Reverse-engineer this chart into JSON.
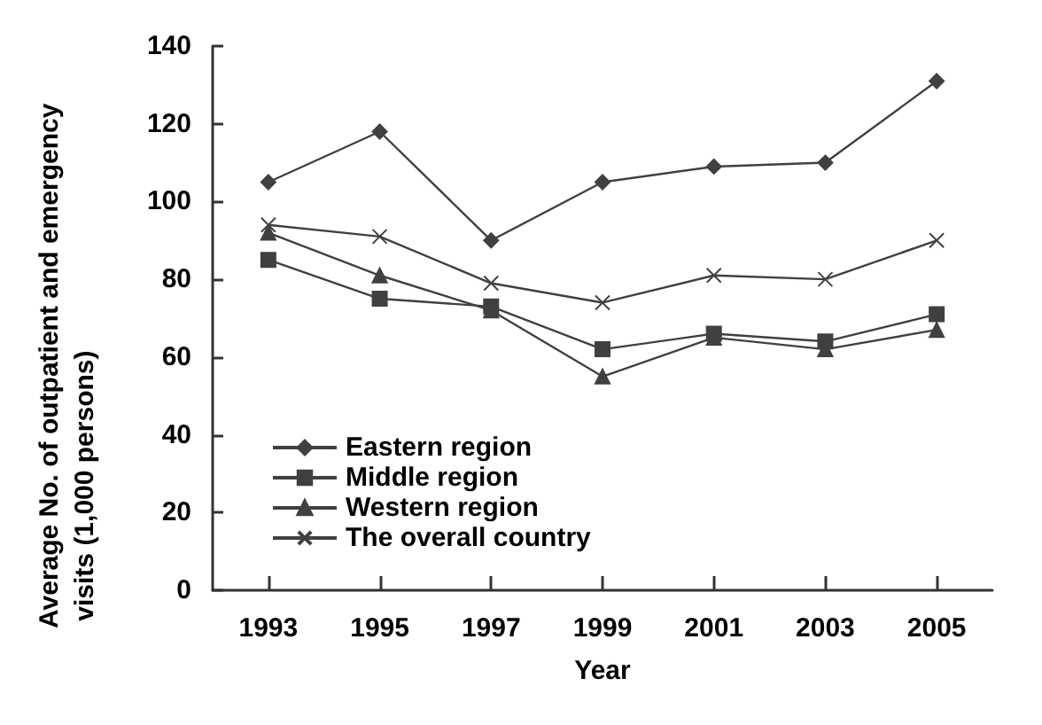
{
  "chart_data": {
    "type": "line",
    "xlabel": "Year",
    "ylabel": "Average No. of outpatient and emergency visits (1,000 persons)",
    "categories": [
      "1993",
      "1995",
      "1997",
      "1999",
      "2001",
      "2003",
      "2005"
    ],
    "series": [
      {
        "name": "Eastern region",
        "color": "#404040",
        "marker": "diamond",
        "values": [
          105,
          118,
          90,
          105,
          109,
          110,
          131
        ]
      },
      {
        "name": "Middle region",
        "color": "#404040",
        "marker": "square",
        "values": [
          85,
          75,
          73,
          62,
          66,
          64,
          71
        ]
      },
      {
        "name": "Western region",
        "color": "#404040",
        "marker": "triangle",
        "values": [
          92,
          81,
          72,
          55,
          65,
          62,
          67
        ]
      },
      {
        "name": "The overall country",
        "color": "#404040",
        "marker": "cross",
        "values": [
          94,
          91,
          79,
          74,
          81,
          80,
          90
        ]
      }
    ],
    "ylim": [
      0,
      140
    ],
    "yticks": [
      0,
      20,
      40,
      60,
      80,
      100,
      120,
      140
    ],
    "grid": false,
    "legend": "bottom left",
    "line_style": "solid"
  }
}
